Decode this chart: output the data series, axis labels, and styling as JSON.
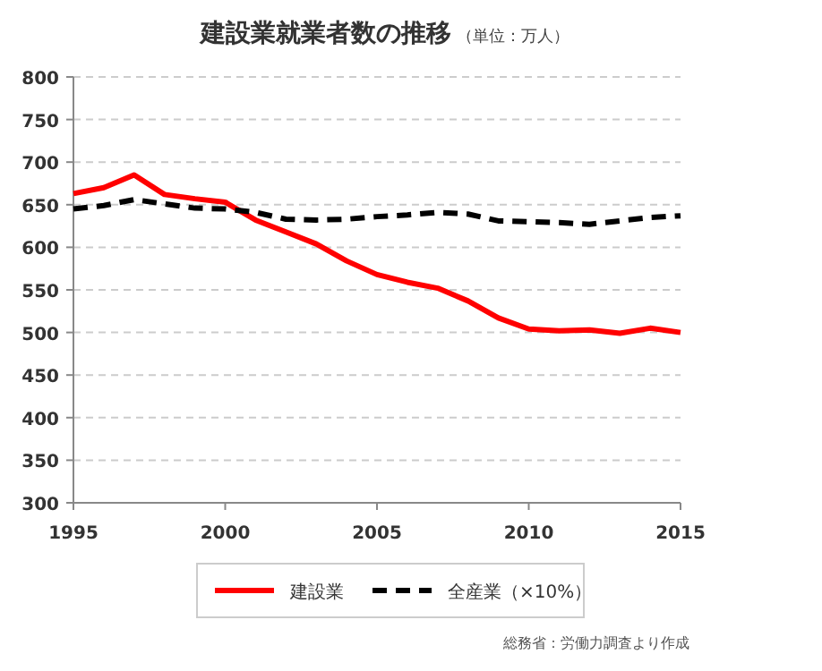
{
  "chart_data": {
    "type": "line",
    "title": "建設業就業者数の推移",
    "subtitle": "（単位：万人）",
    "x": [
      1995,
      1996,
      1997,
      1998,
      1999,
      2000,
      2001,
      2002,
      2003,
      2004,
      2005,
      2006,
      2007,
      2008,
      2009,
      2010,
      2011,
      2012,
      2013,
      2014,
      2015
    ],
    "xlim": [
      1995,
      2015
    ],
    "xticks": [
      1995,
      2000,
      2005,
      2010,
      2015
    ],
    "ylim": [
      300,
      800
    ],
    "yticks": [
      300,
      350,
      400,
      450,
      500,
      550,
      600,
      650,
      700,
      750,
      800
    ],
    "grid": "y",
    "legend": "bottom",
    "series": [
      {
        "name": "建設業",
        "color": "#ff0000",
        "line_style": "solid",
        "values": [
          663,
          670,
          685,
          662,
          657,
          653,
          632,
          618,
          604,
          584,
          568,
          559,
          552,
          537,
          517,
          504,
          502,
          503,
          499,
          505,
          500
        ]
      },
      {
        "name": "全産業（×10%）",
        "color": "#000000",
        "line_style": "dashed",
        "values": [
          645,
          649,
          656,
          651,
          646,
          645,
          641,
          633,
          632,
          633,
          636,
          638,
          641,
          639,
          631,
          630,
          629,
          627,
          631,
          635,
          637
        ]
      }
    ],
    "annotations": [
      "総務省：労働力調査より作成"
    ]
  }
}
